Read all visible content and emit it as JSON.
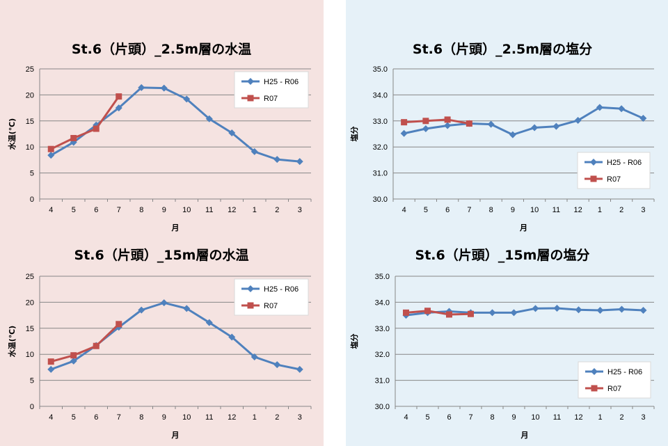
{
  "colors": {
    "series_blue": "#4f81bd",
    "series_red": "#c0504d",
    "panel_left_bg": "#f5e3e1",
    "panel_right_bg": "#e6f1f8",
    "grid": "#868686"
  },
  "chart_data": [
    {
      "type": "line",
      "title": "St.6（片頭）_2.5m層の水温",
      "xlabel": "月",
      "ylabel": "水温(℃)",
      "categories": [
        "4",
        "5",
        "6",
        "7",
        "8",
        "9",
        "10",
        "11",
        "12",
        "1",
        "2",
        "3"
      ],
      "ylim": [
        0,
        25
      ],
      "yticks": [
        "0",
        "5",
        "10",
        "15",
        "20",
        "25"
      ],
      "grid": true,
      "legend_position": "top-right",
      "series": [
        {
          "name": "H25 - R06",
          "values": [
            8.4,
            10.9,
            14.2,
            17.5,
            21.4,
            21.3,
            19.2,
            15.4,
            12.7,
            9.1,
            7.6,
            7.2
          ]
        },
        {
          "name": "R07",
          "values": [
            9.6,
            11.7,
            13.5,
            19.7,
            null,
            null,
            null,
            null,
            null,
            null,
            null,
            null
          ]
        }
      ]
    },
    {
      "type": "line",
      "title": "St.6（片頭）_2.5m層の塩分",
      "xlabel": "月",
      "ylabel": "塩分",
      "categories": [
        "4",
        "5",
        "6",
        "7",
        "8",
        "9",
        "10",
        "11",
        "12",
        "1",
        "2",
        "3"
      ],
      "ylim": [
        30.0,
        35.0
      ],
      "yticks": [
        "30.0",
        "31.0",
        "32.0",
        "33.0",
        "34.0",
        "35.0"
      ],
      "grid": true,
      "legend_position": "middle-right",
      "series": [
        {
          "name": "H25 - R06",
          "values": [
            32.52,
            32.7,
            32.82,
            32.9,
            32.87,
            32.47,
            32.74,
            32.79,
            33.02,
            33.52,
            33.47,
            33.1
          ]
        },
        {
          "name": "R07",
          "values": [
            32.95,
            33.0,
            33.05,
            32.9,
            null,
            null,
            null,
            null,
            null,
            null,
            null,
            null
          ]
        }
      ]
    },
    {
      "type": "line",
      "title": "St.6（片頭）_15m層の水温",
      "xlabel": "月",
      "ylabel": "水温(℃)",
      "categories": [
        "4",
        "5",
        "6",
        "7",
        "8",
        "9",
        "10",
        "11",
        "12",
        "1",
        "2",
        "3"
      ],
      "ylim": [
        0,
        25
      ],
      "yticks": [
        "0",
        "5",
        "10",
        "15",
        "20",
        "25"
      ],
      "grid": true,
      "legend_position": "top-right",
      "series": [
        {
          "name": "H25 - R06",
          "values": [
            7.1,
            8.7,
            11.7,
            15.2,
            18.5,
            19.9,
            18.8,
            16.1,
            13.3,
            9.5,
            8.0,
            7.1
          ]
        },
        {
          "name": "R07",
          "values": [
            8.6,
            9.8,
            11.6,
            15.8,
            null,
            null,
            null,
            null,
            null,
            null,
            null,
            null
          ]
        }
      ]
    },
    {
      "type": "line",
      "title": "St.6（片頭）_15m層の塩分",
      "xlabel": "月",
      "ylabel": "塩分",
      "categories": [
        "4",
        "5",
        "6",
        "7",
        "8",
        "9",
        "10",
        "11",
        "12",
        "1",
        "2",
        "3"
      ],
      "ylim": [
        30.0,
        35.0
      ],
      "yticks": [
        "30.0",
        "31.0",
        "32.0",
        "33.0",
        "34.0",
        "35.0"
      ],
      "grid": true,
      "legend_position": "bottom-right",
      "series": [
        {
          "name": "H25 - R06",
          "values": [
            33.5,
            33.6,
            33.65,
            33.6,
            33.6,
            33.6,
            33.76,
            33.77,
            33.71,
            33.69,
            33.73,
            33.69
          ]
        },
        {
          "name": "R07",
          "values": [
            33.6,
            33.67,
            33.53,
            33.55,
            null,
            null,
            null,
            null,
            null,
            null,
            null,
            null
          ]
        }
      ]
    }
  ]
}
